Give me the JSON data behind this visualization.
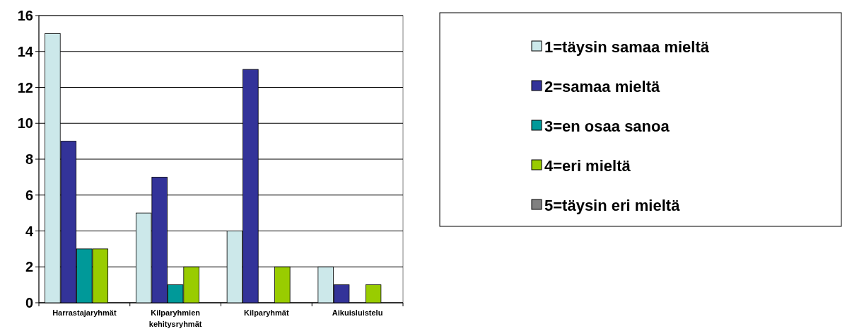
{
  "chart_data": {
    "type": "bar",
    "categories": [
      "Harrastajaryhmät",
      "Kilparyhmien kehitysryhmät",
      "Kilparyhmät",
      "Aikuisluistelu"
    ],
    "series": [
      {
        "name": "1=täysin samaa mieltä",
        "color": "#cce8ea",
        "values": [
          15,
          5,
          4,
          2
        ]
      },
      {
        "name": "2=samaa mieltä",
        "color": "#333399",
        "values": [
          9,
          7,
          13,
          1
        ]
      },
      {
        "name": "3=en osaa sanoa",
        "color": "#009999",
        "values": [
          3,
          1,
          0,
          0
        ]
      },
      {
        "name": "4=eri mieltä",
        "color": "#99cc00",
        "values": [
          3,
          2,
          2,
          1
        ]
      },
      {
        "name": "5=täysin eri mieltä",
        "color": "#808080",
        "values": [
          0,
          0,
          0,
          0
        ]
      }
    ],
    "ylim": [
      0,
      16
    ],
    "yticks": [
      0,
      2,
      4,
      6,
      8,
      10,
      12,
      14,
      16
    ],
    "grid": "y",
    "legend": "right"
  }
}
